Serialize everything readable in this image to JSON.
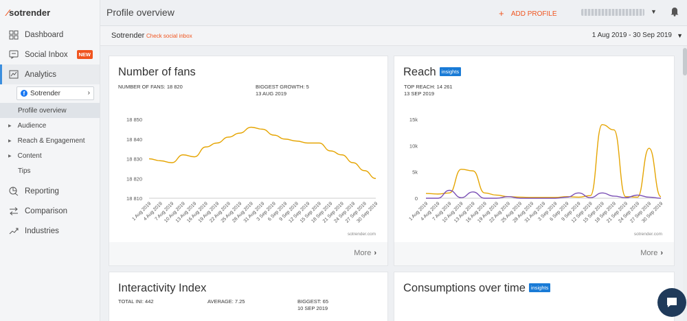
{
  "brand": {
    "logo_text": "sotrender"
  },
  "sidebar": {
    "items": [
      {
        "label": "Dashboard",
        "icon": "dashboard-icon"
      },
      {
        "label": "Social Inbox",
        "icon": "inbox-icon",
        "badge": "NEW"
      },
      {
        "label": "Analytics",
        "icon": "analytics-icon"
      }
    ],
    "account_select": {
      "value": "Sotrender",
      "icon": "facebook-icon"
    },
    "analytics_sub": [
      {
        "label": "Profile overview"
      },
      {
        "label": "Audience"
      },
      {
        "label": "Reach & Engagement"
      },
      {
        "label": "Content"
      },
      {
        "label": "Tips"
      }
    ],
    "bottom_items": [
      {
        "label": "Reporting",
        "icon": "reporting-icon"
      },
      {
        "label": "Comparison",
        "icon": "comparison-icon"
      },
      {
        "label": "Industries",
        "icon": "industries-icon"
      }
    ]
  },
  "header": {
    "title": "Profile overview",
    "add_profile": "ADD PROFILE"
  },
  "subheader": {
    "profile": "Sotrender",
    "check_inbox": "Check social inbox",
    "date_range": "1 Aug 2019 - 30 Sep 2019"
  },
  "cards": {
    "fans": {
      "title": "Number of fans",
      "stat1": "NUMBER OF FANS: 18 820",
      "stat2_label": "BIGGEST GROWTH: 5",
      "stat2_date": "13 AUG 2019",
      "source": "sotrender.com",
      "more": "More"
    },
    "reach": {
      "title": "Reach",
      "insights": "insights",
      "stat1": "TOP REACH: 14 261",
      "stat1_date": "13 SEP 2019",
      "source": "sotrender.com",
      "more": "More"
    },
    "interactivity": {
      "title": "Interactivity Index",
      "total": "TOTAL INI: 442",
      "average": "AVERAGE: 7.25",
      "biggest": "BIGGEST: 65",
      "biggest_date": "10 SEP 2019"
    },
    "consumptions": {
      "title": "Consumptions over time",
      "insights": "insights"
    }
  },
  "colors": {
    "accent": "#f0541e",
    "primary": "#e5a400",
    "secondary": "#7a4fb5",
    "link": "#1a7bd6"
  },
  "chart_data": [
    {
      "type": "line",
      "title": "Number of fans",
      "x": [
        "1 Aug 2019",
        "4 Aug 2019",
        "7 Aug 2019",
        "10 Aug 2019",
        "13 Aug 2019",
        "16 Aug 2019",
        "19 Aug 2019",
        "22 Aug 2019",
        "25 Aug 2019",
        "28 Aug 2019",
        "31 Aug 2019",
        "3 Sep 2019",
        "6 Sep 2019",
        "9 Sep 2019",
        "12 Sep 2019",
        "15 Sep 2019",
        "18 Sep 2019",
        "21 Sep 2019",
        "24 Sep 2019",
        "27 Sep 2019",
        "30 Sep 2019"
      ],
      "yticks": [
        "18 810",
        "18 820",
        "18 830",
        "18 840",
        "18 850"
      ],
      "ylim": [
        18810,
        18850
      ],
      "series": [
        {
          "values": [
            18830,
            18829,
            18828,
            18832,
            18831,
            18836,
            18838,
            18841,
            18843,
            18846,
            18845,
            18842,
            18840,
            18839,
            18838,
            18838,
            18834,
            18832,
            18828,
            18824,
            18820
          ]
        }
      ],
      "source": "sotrender.com"
    },
    {
      "type": "line",
      "title": "Reach",
      "x": [
        "1 Aug 2019",
        "4 Aug 2019",
        "7 Aug 2019",
        "10 Aug 2019",
        "13 Aug 2019",
        "16 Aug 2019",
        "19 Aug 2019",
        "22 Aug 2019",
        "25 Aug 2019",
        "28 Aug 2019",
        "31 Aug 2019",
        "3 Sep 2019",
        "6 Sep 2019",
        "9 Sep 2019",
        "12 Sep 2019",
        "15 Sep 2019",
        "18 Sep 2019",
        "21 Sep 2019",
        "24 Sep 2019",
        "27 Sep 2019",
        "30 Sep 2019"
      ],
      "yticks": [
        "0",
        "5k",
        "10k",
        "15k"
      ],
      "ylim": [
        0,
        15000
      ],
      "series": [
        {
          "values": [
            900,
            800,
            1000,
            5500,
            5200,
            1000,
            600,
            300,
            200,
            150,
            150,
            150,
            300,
            200,
            500,
            14000,
            13000,
            300,
            200,
            9500,
            300
          ]
        },
        {
          "values": [
            0,
            0,
            1500,
            100,
            1200,
            0,
            0,
            300,
            0,
            0,
            0,
            0,
            200,
            1000,
            100,
            1000,
            400,
            100,
            600,
            200,
            0
          ]
        }
      ],
      "source": "sotrender.com"
    }
  ]
}
